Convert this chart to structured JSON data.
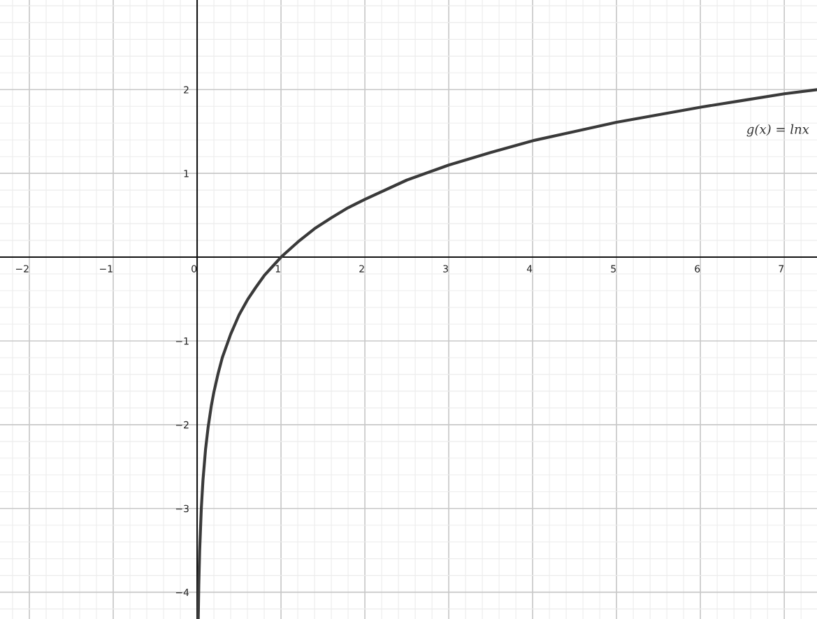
{
  "chart_data": {
    "type": "line",
    "x": [
      0.0133,
      0.02,
      0.03,
      0.05,
      0.07,
      0.1,
      0.13,
      0.17,
      0.2,
      0.25,
      0.3,
      0.4,
      0.5,
      0.6,
      0.7,
      0.8,
      0.9,
      1,
      1.2,
      1.4,
      1.6,
      1.8,
      2,
      2.5,
      3,
      3.5,
      4,
      4.5,
      5,
      5.5,
      6,
      6.5,
      7,
      7.39
    ],
    "series": [
      {
        "name": "g(x) = lnx",
        "color": "#3a3a3a",
        "values": [
          -4.32,
          -3.91,
          -3.51,
          -3.0,
          -2.66,
          -2.3,
          -2.04,
          -1.77,
          -1.61,
          -1.39,
          -1.2,
          -0.92,
          -0.69,
          -0.51,
          -0.36,
          -0.22,
          -0.11,
          0,
          0.18,
          0.34,
          0.47,
          0.59,
          0.69,
          0.92,
          1.1,
          1.25,
          1.39,
          1.5,
          1.61,
          1.7,
          1.79,
          1.87,
          1.95,
          2.0
        ]
      }
    ],
    "xlim": [
      -2.35,
      7.39
    ],
    "ylim": [
      -4.32,
      3.07
    ],
    "xticks": [
      {
        "value": -2,
        "label": "−2"
      },
      {
        "value": -1,
        "label": "−1"
      },
      0,
      1,
      2,
      3,
      4,
      5,
      6,
      7
    ],
    "yticks": [
      {
        "value": -4,
        "label": "−4"
      },
      {
        "value": -3,
        "label": "−3"
      },
      {
        "value": -2,
        "label": "−2"
      },
      {
        "value": -1,
        "label": "−1"
      },
      1,
      2
    ],
    "grid": true,
    "marker": "none",
    "line_style": "solid"
  }
}
